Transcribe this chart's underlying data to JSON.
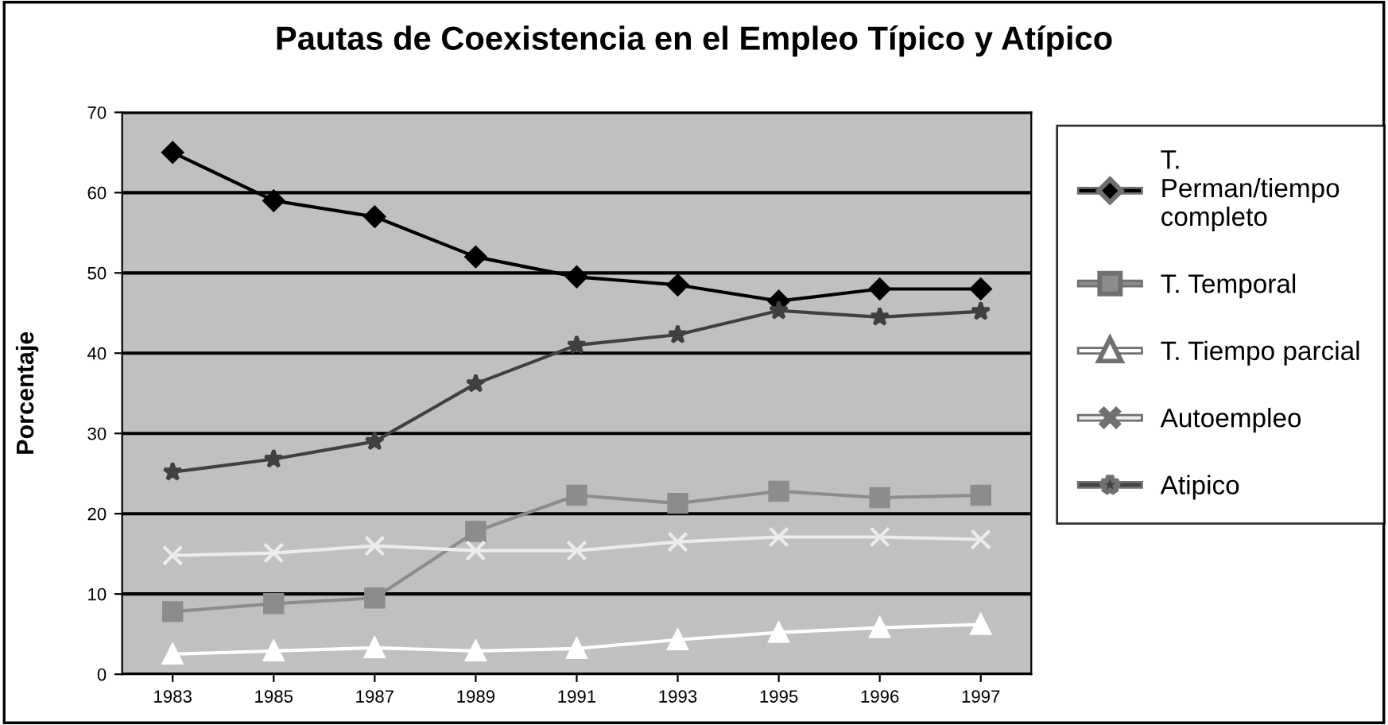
{
  "chart_data": {
    "type": "line",
    "title": "Pautas de Coexistencia en el Empleo Típico y Atípico",
    "ylabel": "Porcentaje",
    "categories": [
      "1983",
      "1985",
      "1987",
      "1989",
      "1991",
      "1993",
      "1995",
      "1996",
      "1997"
    ],
    "series": [
      {
        "name": "T. Perman/tiempo completo",
        "color": "#000000",
        "marker": "diamond",
        "values": [
          65,
          59,
          57,
          52,
          49.5,
          48.5,
          46.5,
          48,
          48
        ]
      },
      {
        "name": "T. Temporal",
        "color": "#8c8c8c",
        "marker": "square",
        "values": [
          7.8,
          8.8,
          9.5,
          17.8,
          22.3,
          21.3,
          22.8,
          22,
          22.3
        ]
      },
      {
        "name": "T. Tiempo parcial",
        "color": "#ffffff",
        "marker": "triangle",
        "values": [
          2.5,
          2.9,
          3.3,
          2.9,
          3.2,
          4.3,
          5.2,
          5.8,
          6.2
        ]
      },
      {
        "name": "Autoempleo",
        "color": "#ececec",
        "marker": "cross",
        "values": [
          14.8,
          15.1,
          16,
          15.4,
          15.4,
          16.5,
          17.1,
          17.1,
          16.8
        ]
      },
      {
        "name": "Atipico",
        "color": "#404040",
        "marker": "star",
        "values": [
          25.2,
          26.8,
          29,
          36.2,
          41,
          42.3,
          45.3,
          44.5,
          45.2
        ]
      }
    ],
    "ylim": [
      0,
      70
    ],
    "yticks": [
      0,
      10,
      20,
      30,
      40,
      50,
      60,
      70
    ],
    "grid": "y",
    "legend": "right",
    "line_style": "solid"
  }
}
